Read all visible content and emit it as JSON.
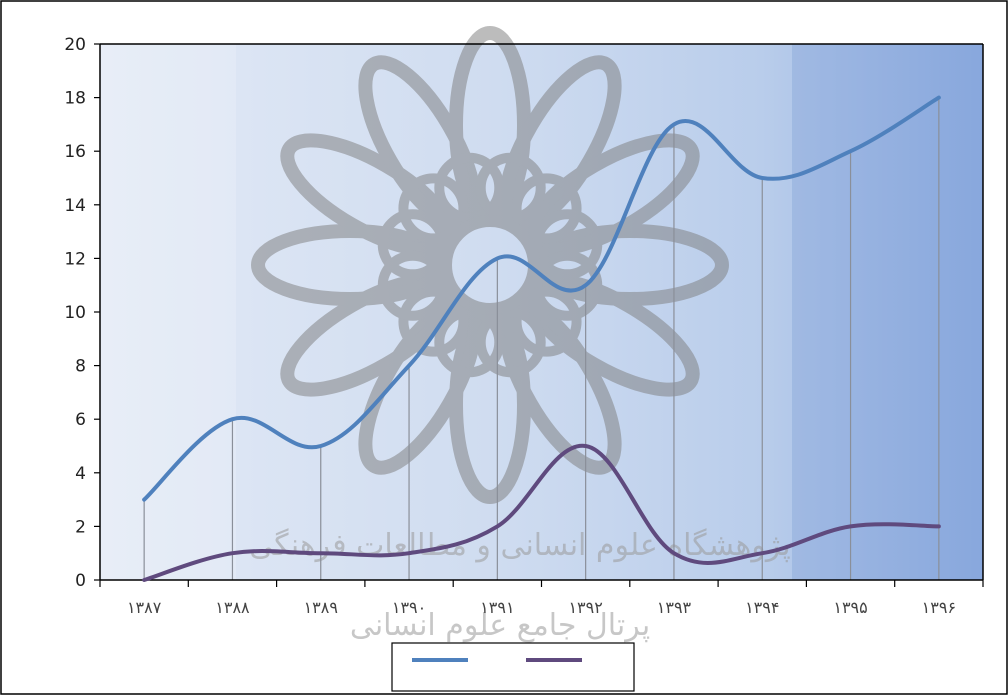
{
  "chart_data": {
    "type": "line",
    "title": "",
    "xlabel": "",
    "ylabel": "",
    "categories": [
      "۱۳۸۷",
      "۱۳۸۸",
      "۱۳۸۹",
      "۱۳۹۰",
      "۱۳۹۱",
      "۱۳۹۲",
      "۱۳۹۳",
      "۱۳۹۴",
      "۱۳۹۵",
      "۱۳۹۶"
    ],
    "series": [
      {
        "values": [
          3,
          6,
          5,
          8,
          12,
          11,
          17,
          15,
          16,
          18
        ],
        "color": "#4f81bd"
      },
      {
        "values": [
          0,
          1,
          1,
          1,
          2,
          5,
          1,
          1,
          2,
          2
        ],
        "color": "#5f4a7e"
      }
    ],
    "ylim": [
      0,
      20
    ],
    "yticks": [
      "0",
      "2",
      "4",
      "6",
      "8",
      "10",
      "12",
      "14",
      "16",
      "18",
      "20"
    ],
    "grid": "vertical drop lines at each category",
    "legend": {
      "placement": "bottom",
      "entries": [
        "",
        ""
      ]
    },
    "background": "blue gradient plot area",
    "watermark": {
      "text_top": "پژوهشگاه علوم انسانی و مطالعات فرهنگی",
      "text_bottom": "پرتال جامع علوم انسانی"
    }
  }
}
